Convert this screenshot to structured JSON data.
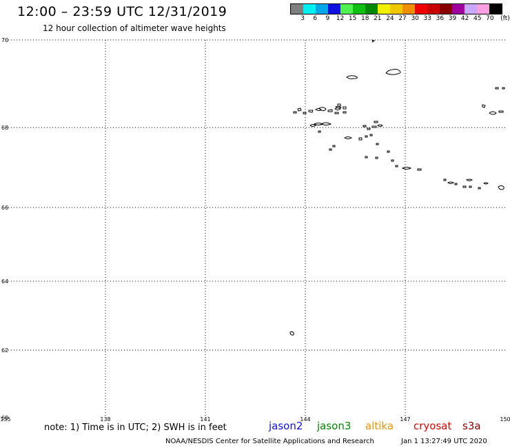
{
  "header": {
    "title": "12:00 – 23:59 UTC 12/31/2019",
    "subtitle": "12 hour collection of altimeter wave heights"
  },
  "legend": {
    "unit": "(ft)",
    "labels": [
      "3",
      "6",
      "9",
      "12",
      "15",
      "18",
      "21",
      "24",
      "27",
      "30",
      "33",
      "36",
      "39",
      "42",
      "45",
      "70"
    ],
    "colors": [
      "#7f7f7f",
      "#00f0f0",
      "#00a8e8",
      "#1010e0",
      "#50f050",
      "#10c010",
      "#008800",
      "#f0f000",
      "#f0c800",
      "#f09000",
      "#f00000",
      "#c80000",
      "#880000",
      "#a000a0",
      "#c8a8f8",
      "#f8a0e0",
      "#000000"
    ]
  },
  "map": {
    "lat_range": [
      60,
      70
    ],
    "lon_range": [
      135,
      150
    ],
    "lat_ticks": [
      "70",
      "68",
      "66",
      "64",
      "62",
      "60"
    ],
    "lon_ticks": [
      "135",
      "138",
      "141",
      "144",
      "147",
      "150"
    ],
    "grid": true,
    "grid_style": "dotted",
    "coastline_color": "#000000",
    "projection": "lat lon (nonlinear latitude spacing)"
  },
  "footer": {
    "note": "note: 1) Time is in UTC; 2) SWH is in feet",
    "satellites": [
      {
        "name": "jason2",
        "color": "#1010e0"
      },
      {
        "name": "jason3",
        "color": "#008800"
      },
      {
        "name": "altika",
        "color": "#f09000"
      },
      {
        "name": "cryosat",
        "color": "#e00000"
      },
      {
        "name": "s3a",
        "color": "#880000"
      }
    ],
    "credit": "NOAA/NESDIS Center for Satellite Applications and Research",
    "timestamp": "Jan  1 13:27:49 UTC 2020"
  }
}
